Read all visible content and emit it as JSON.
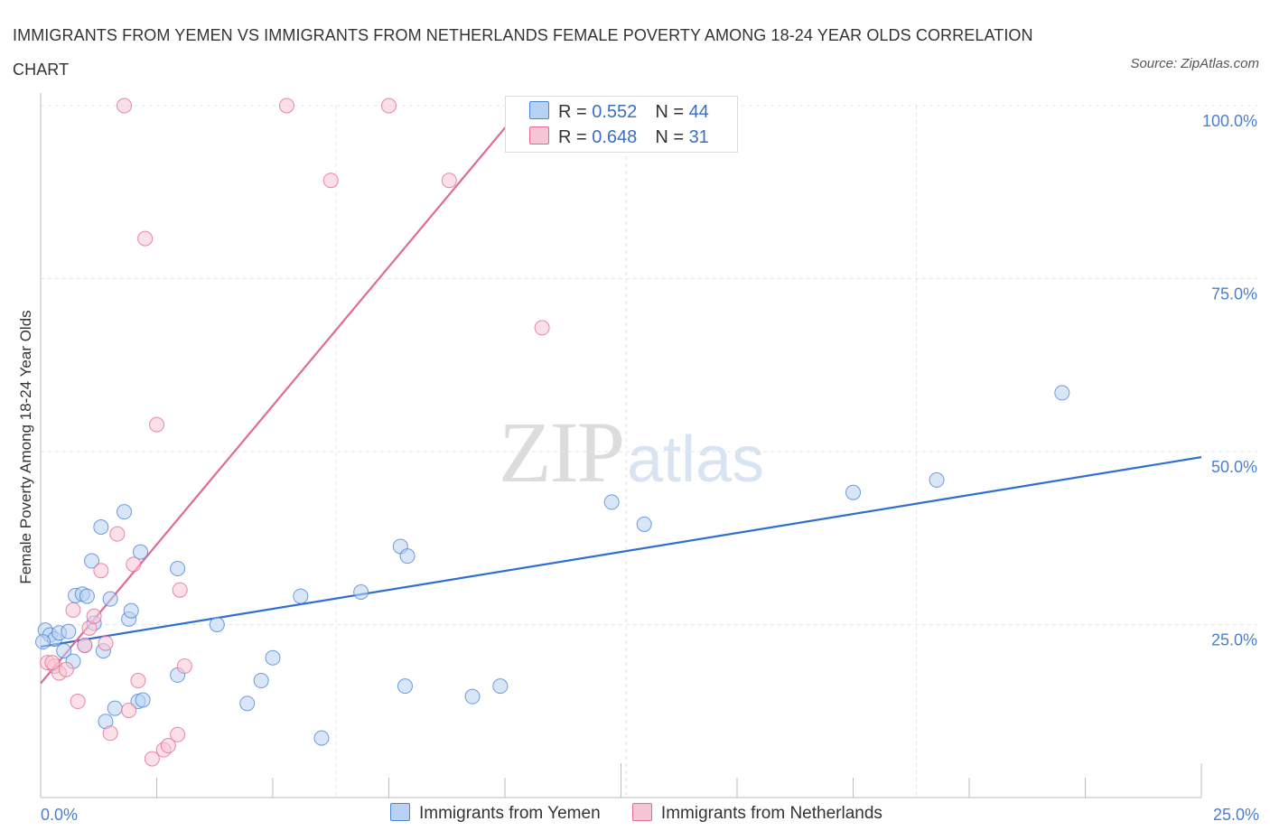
{
  "title": "IMMIGRANTS FROM YEMEN VS IMMIGRANTS FROM NETHERLANDS FEMALE POVERTY AMONG 18-24 YEAR OLDS CORRELATION CHART",
  "source": "Source: ZipAtlas.com",
  "watermark": {
    "zip": "ZIP",
    "atlas": "atlas"
  },
  "colors": {
    "blue": "#4a86d8",
    "blue_fill": "#b9d2f3",
    "pink": "#e46a96",
    "pink_fill": "#f7c6d6",
    "axis_text": "#4a7fd0",
    "grid": "#e4e4e4"
  },
  "legend": {
    "rows": [
      {
        "r_label": "R = ",
        "r_value": "0.552",
        "n_label": "N = ",
        "n_value": "44"
      },
      {
        "r_label": "R = ",
        "r_value": "0.648",
        "n_label": "N = ",
        "n_value": "31"
      }
    ]
  },
  "bottom_legend": [
    "Immigrants from Yemen",
    "Immigrants from Netherlands"
  ],
  "chart_data": {
    "type": "scatter",
    "title": "IMMIGRANTS FROM YEMEN VS IMMIGRANTS FROM NETHERLANDS FEMALE POVERTY AMONG 18-24 YEAR OLDS CORRELATION CHART",
    "xlabel": "",
    "ylabel": "Female Poverty Among 18-24 Year Olds",
    "xlim": [
      0,
      25
    ],
    "ylim": [
      0,
      100
    ],
    "x_tick_labels": [
      "0.0%",
      "25.0%"
    ],
    "y_ticks": [
      25,
      50,
      75,
      100
    ],
    "y_tick_labels": [
      "25.0%",
      "50.0%",
      "75.0%",
      "100.0%"
    ],
    "grid": true,
    "legend_position": "top-center",
    "series": [
      {
        "name": "Immigrants from Yemen",
        "color": "blue",
        "R": 0.552,
        "N": 44,
        "trend": {
          "x": [
            0,
            25
          ],
          "y": [
            21.8,
            49.2
          ]
        },
        "points": [
          [
            0.1,
            24.2
          ],
          [
            0.2,
            23.5
          ],
          [
            0.3,
            22.9
          ],
          [
            0.4,
            23.8
          ],
          [
            0.5,
            21.2
          ],
          [
            0.6,
            24.0
          ],
          [
            0.7,
            19.7
          ],
          [
            0.75,
            29.2
          ],
          [
            0.9,
            29.4
          ],
          [
            0.95,
            22.0
          ],
          [
            1.0,
            29.1
          ],
          [
            1.1,
            34.2
          ],
          [
            1.15,
            25.2
          ],
          [
            1.3,
            39.1
          ],
          [
            1.35,
            21.2
          ],
          [
            1.4,
            11.0
          ],
          [
            1.5,
            28.7
          ],
          [
            1.6,
            12.9
          ],
          [
            1.8,
            41.3
          ],
          [
            1.9,
            25.8
          ],
          [
            1.95,
            27.0
          ],
          [
            2.1,
            13.9
          ],
          [
            2.15,
            35.5
          ],
          [
            2.2,
            14.1
          ],
          [
            2.95,
            33.1
          ],
          [
            2.95,
            17.7
          ],
          [
            3.8,
            25.0
          ],
          [
            4.45,
            13.6
          ],
          [
            4.75,
            16.9
          ],
          [
            5.0,
            20.2
          ],
          [
            5.6,
            29.1
          ],
          [
            6.05,
            8.6
          ],
          [
            6.9,
            29.7
          ],
          [
            7.75,
            36.3
          ],
          [
            7.9,
            34.9
          ],
          [
            7.85,
            16.1
          ],
          [
            9.3,
            14.6
          ],
          [
            9.9,
            16.1
          ],
          [
            12.3,
            42.7
          ],
          [
            13.0,
            39.5
          ],
          [
            17.5,
            44.1
          ],
          [
            19.3,
            45.9
          ],
          [
            22.0,
            58.5
          ],
          [
            0.05,
            22.5
          ]
        ]
      },
      {
        "name": "Immigrants from Netherlands",
        "color": "pink",
        "R": 0.648,
        "N": 31,
        "trend": {
          "x": [
            0,
            10.4
          ],
          "y": [
            16.5,
            100
          ]
        },
        "points": [
          [
            0.15,
            19.5
          ],
          [
            0.3,
            19.0
          ],
          [
            0.4,
            18.0
          ],
          [
            0.55,
            18.5
          ],
          [
            0.7,
            27.1
          ],
          [
            0.8,
            13.9
          ],
          [
            0.95,
            22.0
          ],
          [
            1.05,
            24.5
          ],
          [
            1.15,
            26.2
          ],
          [
            1.3,
            32.8
          ],
          [
            1.4,
            22.3
          ],
          [
            1.5,
            9.3
          ],
          [
            1.65,
            38.1
          ],
          [
            1.9,
            12.6
          ],
          [
            2.0,
            33.7
          ],
          [
            2.1,
            16.9
          ],
          [
            2.25,
            80.8
          ],
          [
            2.5,
            53.9
          ],
          [
            2.4,
            5.6
          ],
          [
            2.65,
            6.9
          ],
          [
            2.75,
            7.5
          ],
          [
            2.95,
            9.1
          ],
          [
            3.0,
            30.0
          ],
          [
            3.1,
            19.0
          ],
          [
            1.8,
            100
          ],
          [
            5.3,
            100
          ],
          [
            7.5,
            100
          ],
          [
            6.25,
            89.2
          ],
          [
            8.8,
            89.2
          ],
          [
            10.8,
            67.9
          ],
          [
            0.25,
            19.5
          ]
        ]
      }
    ]
  }
}
